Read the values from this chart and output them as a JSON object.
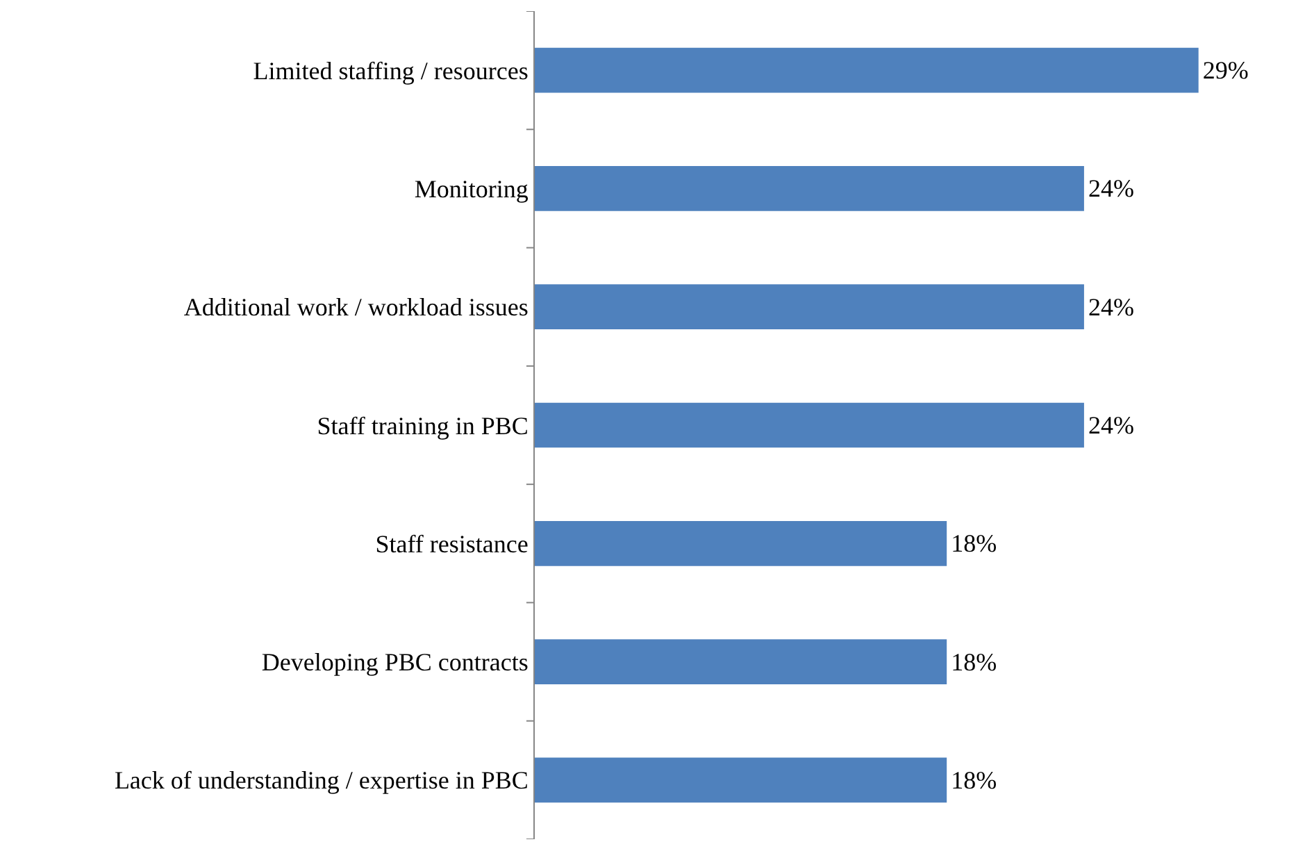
{
  "chart_data": {
    "type": "bar",
    "orientation": "horizontal",
    "categories": [
      "Limited staffing / resources",
      "Monitoring",
      "Additional work / workload issues",
      "Staff training in PBC",
      "Staff resistance",
      "Developing PBC contracts",
      "Lack of understanding / expertise in PBC"
    ],
    "values": [
      29,
      24,
      24,
      24,
      18,
      18,
      18
    ],
    "value_labels": [
      "29%",
      "24%",
      "24%",
      "24%",
      "18%",
      "18%",
      "18%"
    ],
    "color": "#4f81bd",
    "tick_labels": "y"
  }
}
